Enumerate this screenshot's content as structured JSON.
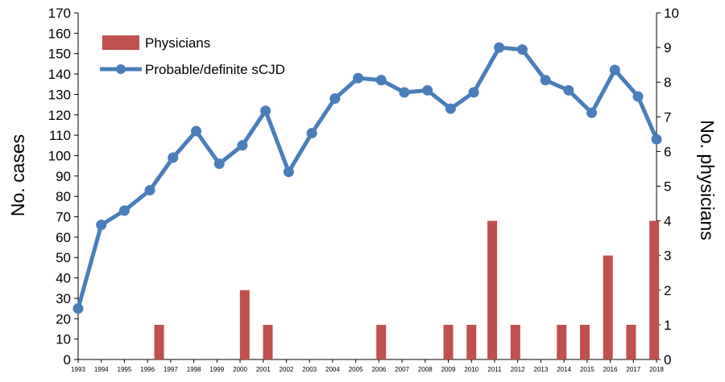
{
  "chart_data": {
    "type": "bar+line",
    "dual_axis": true,
    "x": [
      "1993",
      "1994",
      "1995",
      "1996",
      "1997",
      "1998",
      "1999",
      "2000",
      "2001",
      "2002",
      "2003",
      "2004",
      "2005",
      "2006",
      "2007",
      "2008",
      "2009",
      "2010",
      "2011",
      "2012",
      "2013",
      "2014",
      "2015",
      "2016",
      "2017",
      "2018"
    ],
    "ylabel": "No. cases",
    "y2label": "No. physicians",
    "ylim": [
      0,
      170
    ],
    "y2lim": [
      0,
      10
    ],
    "yticks": [
      0,
      10,
      20,
      30,
      40,
      50,
      60,
      70,
      80,
      90,
      100,
      110,
      120,
      130,
      140,
      150,
      160,
      170
    ],
    "y2ticks": [
      0,
      1,
      2,
      3,
      4,
      5,
      6,
      7,
      8,
      9,
      10
    ],
    "legend_position": "top-left",
    "series": [
      {
        "name": "Physicians",
        "type": "bar",
        "axis": "right",
        "color": "#c0504d",
        "points": [
          {
            "x": 1996.5,
            "y": 1
          },
          {
            "x": 2000.2,
            "y": 2
          },
          {
            "x": 2001.2,
            "y": 1
          },
          {
            "x": 2006.1,
            "y": 1
          },
          {
            "x": 2009.0,
            "y": 1
          },
          {
            "x": 2010.0,
            "y": 1
          },
          {
            "x": 2010.9,
            "y": 4
          },
          {
            "x": 2011.9,
            "y": 1
          },
          {
            "x": 2013.9,
            "y": 1
          },
          {
            "x": 2014.9,
            "y": 1
          },
          {
            "x": 2015.9,
            "y": 3
          },
          {
            "x": 2016.9,
            "y": 1
          },
          {
            "x": 2017.9,
            "y": 4
          }
        ]
      },
      {
        "name": "Probable/definite sCJD",
        "type": "line",
        "axis": "left",
        "color": "#4a7ebb",
        "points": [
          {
            "x": 1993.0,
            "y": 25
          },
          {
            "x": 1994.0,
            "y": 66
          },
          {
            "x": 1995.0,
            "y": 73
          },
          {
            "x": 1996.1,
            "y": 83
          },
          {
            "x": 1997.1,
            "y": 99
          },
          {
            "x": 1998.1,
            "y": 112
          },
          {
            "x": 1999.1,
            "y": 96
          },
          {
            "x": 2000.1,
            "y": 105
          },
          {
            "x": 2001.1,
            "y": 122
          },
          {
            "x": 2002.1,
            "y": 92
          },
          {
            "x": 2003.1,
            "y": 111
          },
          {
            "x": 2004.1,
            "y": 128
          },
          {
            "x": 2005.1,
            "y": 138
          },
          {
            "x": 2006.1,
            "y": 137
          },
          {
            "x": 2007.1,
            "y": 131
          },
          {
            "x": 2008.1,
            "y": 132
          },
          {
            "x": 2009.1,
            "y": 123
          },
          {
            "x": 2010.1,
            "y": 131
          },
          {
            "x": 2011.2,
            "y": 153
          },
          {
            "x": 2012.2,
            "y": 152
          },
          {
            "x": 2013.2,
            "y": 137
          },
          {
            "x": 2014.2,
            "y": 132
          },
          {
            "x": 2015.2,
            "y": 121
          },
          {
            "x": 2016.2,
            "y": 142
          },
          {
            "x": 2017.2,
            "y": 129
          },
          {
            "x": 2018.0,
            "y": 108
          }
        ]
      }
    ]
  }
}
